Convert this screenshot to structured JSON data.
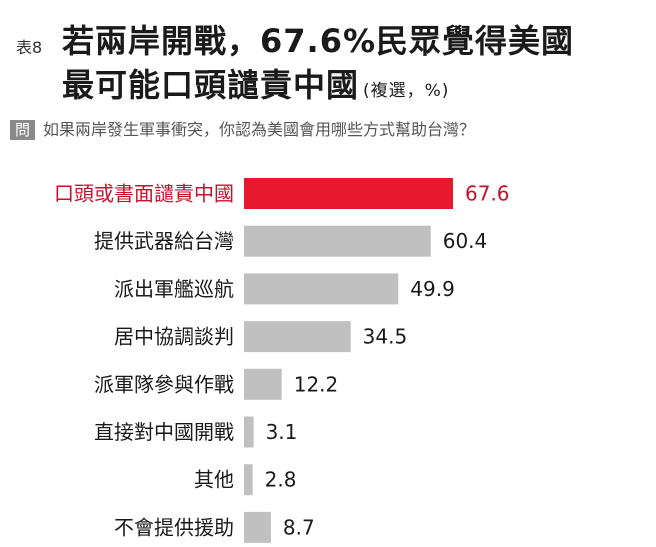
{
  "header": {
    "table_no": "表8",
    "title_line1": "若兩岸開戰，67.6%民眾覺得美國",
    "title_line2": "最可能口頭譴責中國",
    "title_note": "(複選，%)",
    "question_badge": "問",
    "question": "如果兩岸發生軍事衝突，你認為美國會用哪些方式幫助台灣？"
  },
  "chart_data": {
    "type": "bar",
    "orientation": "horizontal",
    "categories": [
      "口頭或書面譴責中國",
      "提供武器給台灣",
      "派出軍艦巡航",
      "居中協調談判",
      "派軍隊參與作戰",
      "直接對中國開戰",
      "其他",
      "不會提供援助"
    ],
    "values": [
      67.6,
      60.4,
      49.9,
      34.5,
      12.2,
      3.1,
      2.8,
      8.7
    ],
    "value_labels": [
      "67.6",
      "60.4",
      "49.9",
      "34.5",
      "12.2",
      "3.1",
      "2.8",
      "8.7"
    ],
    "highlight_index": 0,
    "xlim": [
      0,
      100
    ],
    "grid": false,
    "legend": "none",
    "colors": {
      "highlight_bar": "#e8192c",
      "highlight_text": "#c8102e",
      "bar": "#c0c0c0",
      "text": "#1a1a1a"
    }
  }
}
